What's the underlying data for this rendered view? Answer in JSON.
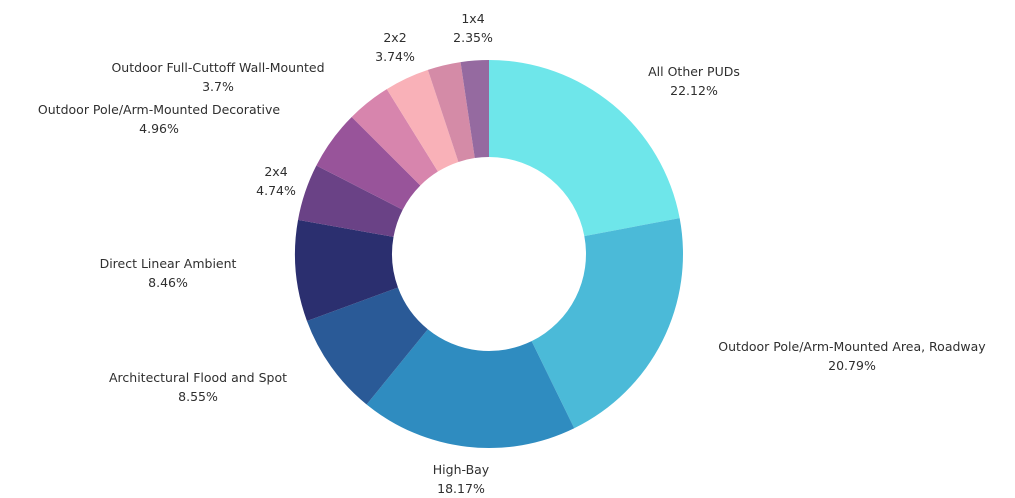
{
  "chart_data": {
    "type": "pie",
    "style": "donut",
    "title": "",
    "legend": "none",
    "slices": [
      {
        "label": "All Other PUDs",
        "value": 22.12,
        "value_label": "22.12%",
        "color": "#6ee6ea"
      },
      {
        "label": "Outdoor Pole/Arm-Mounted Area, Roadway",
        "value": 20.79,
        "value_label": "20.79%",
        "color": "#4bbad8"
      },
      {
        "label": "High-Bay",
        "value": 18.17,
        "value_label": "18.17%",
        "color": "#2f8cc0"
      },
      {
        "label": "Architectural Flood and Spot",
        "value": 8.55,
        "value_label": "8.55%",
        "color": "#2a5a97"
      },
      {
        "label": "Direct Linear Ambient",
        "value": 8.46,
        "value_label": "8.46%",
        "color": "#2b2f6f"
      },
      {
        "label": "2x4",
        "value": 4.74,
        "value_label": "4.74%",
        "color": "#6a4286"
      },
      {
        "label": "Outdoor Pole/Arm-Mounted Decorative",
        "value": 4.96,
        "value_label": "4.96%",
        "color": "#98549a"
      },
      {
        "label": "Outdoor Full-Cuttoff Wall-Mounted",
        "value": 3.7,
        "value_label": "3.7%",
        "color": "#d785ad"
      },
      {
        "label": "2x2",
        "value": 3.74,
        "value_label": "3.74%",
        "color": "#f9b1b8"
      },
      {
        "label": "",
        "value": 2.77,
        "value_label": "",
        "color": "#d48ba7"
      },
      {
        "label": "1x4",
        "value": 2.35,
        "value_label": "2.35%",
        "color": "#956aa0"
      }
    ]
  }
}
